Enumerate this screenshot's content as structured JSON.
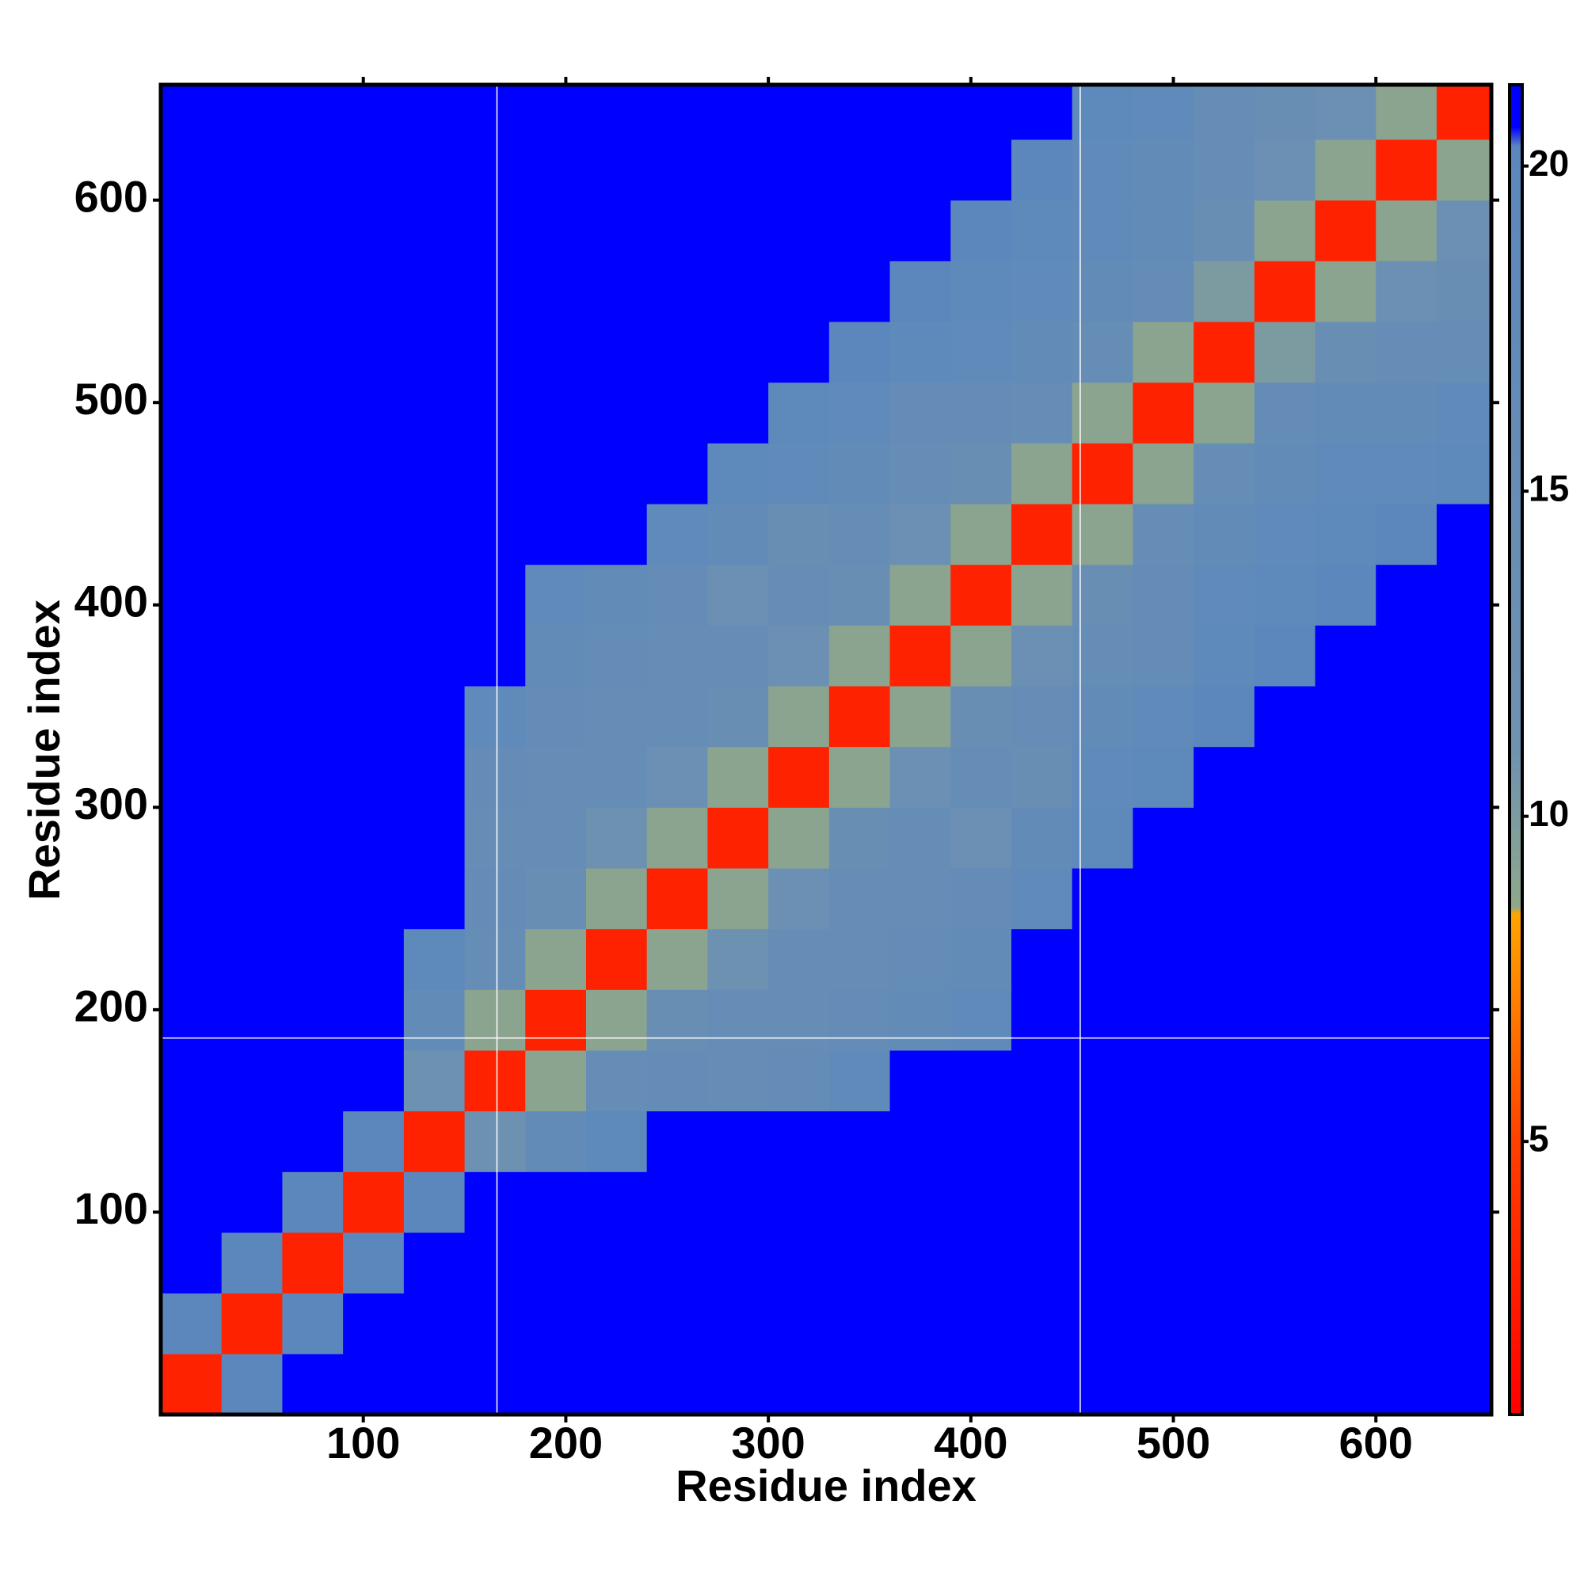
{
  "chart_data": {
    "type": "heatmap",
    "xlabel": "Residue index",
    "ylabel": "Residue index",
    "xlim": [
      0,
      657
    ],
    "ylim": [
      0,
      657
    ],
    "xticks": [
      100,
      200,
      300,
      400,
      500,
      600
    ],
    "yticks": [
      100,
      200,
      300,
      400,
      500,
      600
    ],
    "bins": [
      0,
      30,
      60,
      90,
      120,
      150,
      180,
      210,
      240,
      270,
      300,
      330,
      360,
      390,
      420,
      450,
      480,
      510,
      540,
      570,
      600,
      630,
      660
    ],
    "z": [
      [
        3,
        20,
        21,
        21,
        21,
        21,
        21,
        21,
        21,
        21,
        21,
        21,
        21,
        21,
        21,
        21,
        21,
        21,
        21,
        21,
        21,
        21
      ],
      [
        20,
        3,
        20,
        21,
        21,
        21,
        21,
        21,
        21,
        21,
        21,
        21,
        21,
        21,
        21,
        21,
        21,
        21,
        21,
        21,
        21,
        21
      ],
      [
        21,
        20,
        3,
        20,
        21,
        21,
        21,
        21,
        21,
        21,
        21,
        21,
        21,
        21,
        21,
        21,
        21,
        21,
        21,
        21,
        21,
        21
      ],
      [
        21,
        21,
        20,
        3,
        20,
        21,
        21,
        21,
        21,
        21,
        21,
        21,
        21,
        21,
        21,
        21,
        21,
        21,
        21,
        21,
        21,
        21
      ],
      [
        21,
        21,
        21,
        20,
        3,
        12,
        17,
        19,
        21,
        21,
        21,
        21,
        21,
        21,
        21,
        21,
        21,
        21,
        21,
        21,
        21,
        21
      ],
      [
        21,
        21,
        21,
        21,
        12,
        3,
        9,
        15,
        16,
        15,
        16,
        18,
        21,
        21,
        21,
        21,
        21,
        21,
        21,
        21,
        21,
        21
      ],
      [
        21,
        21,
        21,
        21,
        17,
        9,
        3,
        9,
        14,
        15,
        15,
        16,
        17,
        18,
        21,
        21,
        21,
        21,
        21,
        21,
        21,
        21
      ],
      [
        21,
        21,
        21,
        21,
        19,
        15,
        9,
        3,
        9,
        12,
        15,
        15,
        16,
        17,
        21,
        21,
        21,
        21,
        21,
        21,
        21,
        21
      ],
      [
        21,
        21,
        21,
        21,
        21,
        16,
        14,
        9,
        3,
        9,
        13,
        15,
        15,
        16,
        18,
        21,
        21,
        21,
        21,
        21,
        21,
        21
      ],
      [
        21,
        21,
        21,
        21,
        21,
        15,
        15,
        12,
        9,
        3,
        9,
        14,
        15,
        13,
        17,
        19,
        21,
        21,
        21,
        21,
        21,
        21
      ],
      [
        21,
        21,
        21,
        21,
        21,
        16,
        15,
        15,
        13,
        9,
        3,
        9,
        13,
        15,
        14,
        18,
        19,
        21,
        21,
        21,
        21,
        21
      ],
      [
        21,
        21,
        21,
        21,
        21,
        18,
        16,
        15,
        15,
        14,
        9,
        3,
        9,
        14,
        15,
        17,
        18,
        20,
        21,
        21,
        21,
        21
      ],
      [
        21,
        21,
        21,
        21,
        21,
        21,
        17,
        16,
        15,
        15,
        13,
        9,
        3,
        9,
        13,
        15,
        16,
        19,
        20,
        21,
        21,
        21
      ],
      [
        21,
        21,
        21,
        21,
        21,
        21,
        18,
        17,
        16,
        13,
        15,
        14,
        9,
        3,
        9,
        14,
        16,
        18,
        19,
        20,
        21,
        21
      ],
      [
        21,
        21,
        21,
        21,
        21,
        21,
        21,
        21,
        18,
        17,
        14,
        15,
        13,
        9,
        3,
        9,
        15,
        17,
        18,
        19,
        20,
        21
      ],
      [
        21,
        21,
        21,
        21,
        21,
        21,
        21,
        21,
        21,
        19,
        18,
        17,
        15,
        14,
        9,
        3,
        9,
        15,
        17,
        18,
        18,
        19
      ],
      [
        21,
        21,
        21,
        21,
        21,
        21,
        21,
        21,
        21,
        21,
        19,
        18,
        16,
        16,
        15,
        9,
        3,
        9,
        16,
        17,
        17,
        18
      ],
      [
        21,
        21,
        21,
        21,
        21,
        21,
        21,
        21,
        21,
        21,
        21,
        20,
        19,
        18,
        17,
        15,
        9,
        3,
        10,
        14,
        15,
        15
      ],
      [
        21,
        21,
        21,
        21,
        21,
        21,
        21,
        21,
        21,
        21,
        21,
        21,
        20,
        19,
        18,
        17,
        16,
        10,
        3,
        9,
        13,
        14
      ],
      [
        21,
        21,
        21,
        21,
        21,
        21,
        21,
        21,
        21,
        21,
        21,
        21,
        21,
        20,
        19,
        18,
        17,
        14,
        9,
        3,
        9,
        13
      ],
      [
        21,
        21,
        21,
        21,
        21,
        21,
        21,
        21,
        21,
        21,
        21,
        21,
        21,
        21,
        20,
        18,
        17,
        15,
        13,
        9,
        3,
        9
      ],
      [
        21,
        21,
        21,
        21,
        21,
        21,
        21,
        21,
        21,
        21,
        21,
        21,
        21,
        21,
        21,
        19,
        18,
        15,
        14,
        13,
        9,
        3
      ]
    ],
    "vlines": [
      166,
      454
    ],
    "hlines": [
      186
    ],
    "clim": [
      0.8,
      21.25
    ],
    "cticks": [
      5,
      10,
      15,
      20
    ],
    "colorscale": [
      [
        0.8,
        "#ff0000"
      ],
      [
        5,
        "#ff4000"
      ],
      [
        8.5,
        "#ffa500"
      ],
      [
        8.6,
        "#8fa88a"
      ],
      [
        11,
        "#6f92b0"
      ],
      [
        20.3,
        "#5b87bd"
      ],
      [
        20.6,
        "#0000ff"
      ],
      [
        21.25,
        "#0000ff"
      ]
    ]
  }
}
